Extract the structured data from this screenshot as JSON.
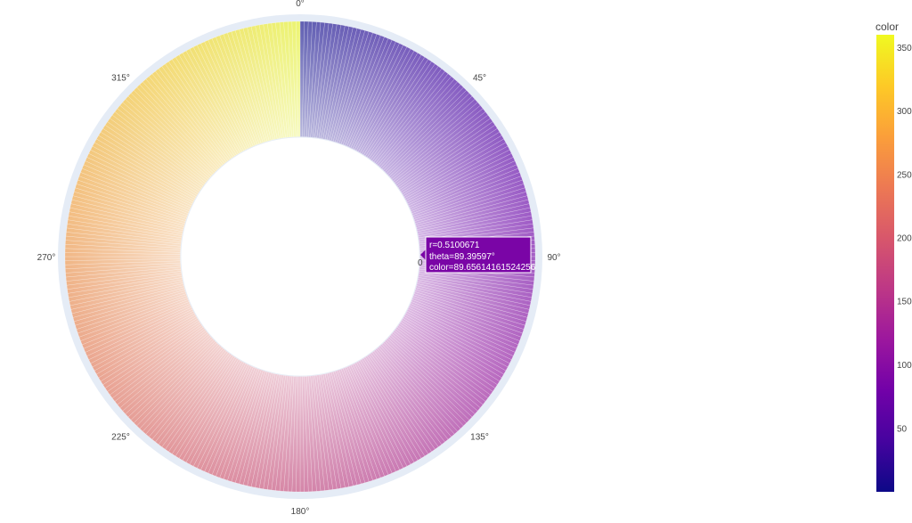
{
  "chart_data": {
    "type": "barpolar",
    "angular_axis": {
      "tick_labels": [
        "0°",
        "45°",
        "90°",
        "135°",
        "180°",
        "225°",
        "270°",
        "315°"
      ],
      "tick_values_deg": [
        0,
        45,
        90,
        135,
        180,
        225,
        270,
        315
      ],
      "direction": "clockwise",
      "rotation_deg": 90
    },
    "series": [
      {
        "theta_range_deg": [
          0,
          360
        ],
        "bar_count": 360,
        "color_range": [
          0,
          360
        ],
        "hole_fraction": 0.51,
        "opacity_gradient": "radial"
      }
    ],
    "colorbar": {
      "title": "color",
      "range": [
        0,
        360
      ],
      "tick_labels": [
        "50",
        "100",
        "150",
        "200",
        "250",
        "300",
        "350"
      ],
      "tick_values": [
        50,
        100,
        150,
        200,
        250,
        300,
        350
      ],
      "colorscale": [
        "#0d0887",
        "#46039f",
        "#7201a8",
        "#9c179e",
        "#bd3786",
        "#d8576b",
        "#ed7953",
        "#fb9f3a",
        "#fdca26",
        "#f0f921"
      ]
    },
    "hover": {
      "r_text": "r=0.5100671",
      "theta_text": "theta=89.39597°",
      "color_text": "color=89.65614161524256",
      "axis_marker": "0",
      "bg_color": "#7a05a6"
    },
    "polar_bg_color": "#e5ecf6",
    "grid": true,
    "legend": "colorbar-right"
  }
}
